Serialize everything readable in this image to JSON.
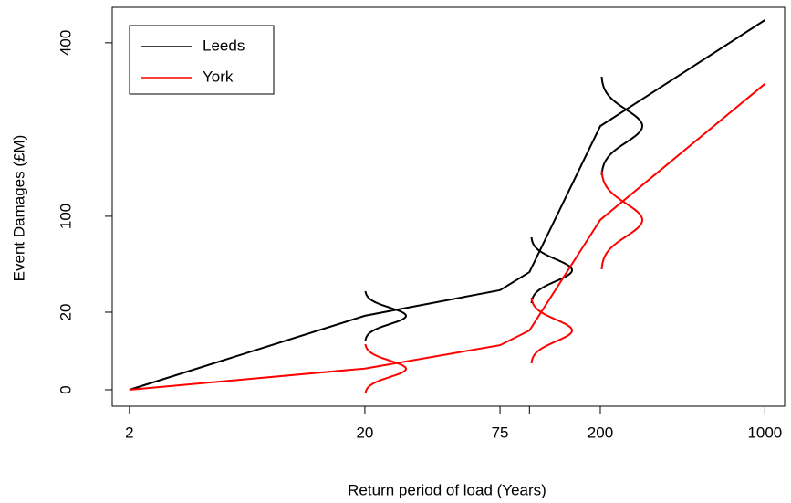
{
  "chart_data": {
    "type": "line",
    "xlabel": "Return period of load (Years)",
    "ylabel": "Event Damages (£M)",
    "x": [
      2,
      20,
      75,
      100,
      200,
      1000
    ],
    "series": [
      {
        "name": "Leeds",
        "color": "#000000",
        "values": [
          0,
          18.2,
          33,
          46,
          231,
          454
        ]
      },
      {
        "name": "York",
        "color": "#ff0000",
        "values": [
          0,
          1.5,
          6.6,
          11.7,
          96,
          311
        ]
      }
    ],
    "xscale": "log",
    "yscale": "sqrt",
    "xlim": [
      1.69,
      1213
    ],
    "ylim": [
      -0.9,
      486
    ],
    "xticks": [
      2,
      20,
      75,
      {
        "value": 100,
        "label": null
      },
      200,
      1000
    ],
    "yticks": [
      0,
      20,
      100,
      400
    ],
    "legend": "top-left"
  }
}
